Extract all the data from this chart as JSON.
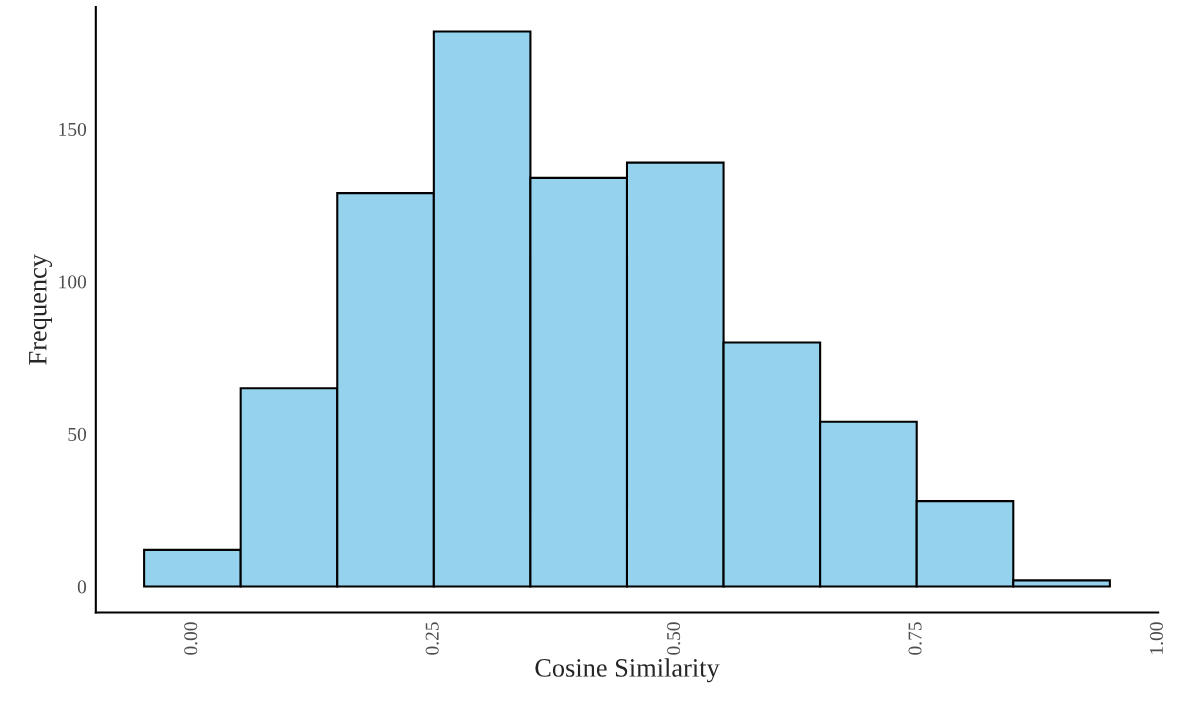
{
  "chart_data": {
    "type": "histogram",
    "xlabel": "Cosine Similarity",
    "ylabel": "Frequency",
    "bins": [
      -0.05,
      0.05,
      0.15,
      0.25,
      0.35,
      0.45,
      0.55,
      0.65,
      0.75,
      0.85,
      0.95
    ],
    "values": [
      12,
      65,
      129,
      182,
      134,
      139,
      80,
      54,
      28,
      2
    ],
    "color": "#94d2ee",
    "xlim": [
      -0.1,
      1.0
    ],
    "xticks": [
      {
        "value": 0,
        "label": "0.00"
      },
      {
        "value": 0.25,
        "label": "0.25"
      },
      {
        "value": 0.5,
        "label": "0.50"
      },
      {
        "value": 0.75,
        "label": "0.75"
      },
      {
        "value": 1.0,
        "label": "1.00"
      }
    ],
    "ylim": [
      -8.5,
      190
    ],
    "yticks": [
      0,
      50,
      100,
      150
    ],
    "grid": false
  }
}
